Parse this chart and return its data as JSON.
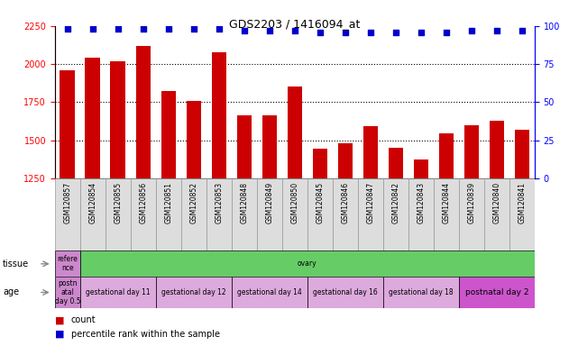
{
  "title": "GDS2203 / 1416094_at",
  "samples": [
    "GSM120857",
    "GSM120854",
    "GSM120855",
    "GSM120856",
    "GSM120851",
    "GSM120852",
    "GSM120853",
    "GSM120848",
    "GSM120849",
    "GSM120850",
    "GSM120845",
    "GSM120846",
    "GSM120847",
    "GSM120842",
    "GSM120843",
    "GSM120844",
    "GSM120839",
    "GSM120840",
    "GSM120841"
  ],
  "counts": [
    1960,
    2040,
    2020,
    2120,
    1820,
    1760,
    2075,
    1665,
    1660,
    1850,
    1445,
    1480,
    1590,
    1450,
    1375,
    1545,
    1600,
    1630,
    1570
  ],
  "percentiles": [
    98,
    98,
    98,
    98,
    98,
    98,
    98,
    97,
    97,
    97,
    96,
    96,
    96,
    96,
    96,
    96,
    97,
    97,
    97
  ],
  "ylim_left": [
    1250,
    2250
  ],
  "ylim_right": [
    0,
    100
  ],
  "yticks_left": [
    1250,
    1500,
    1750,
    2000,
    2250
  ],
  "yticks_right": [
    0,
    25,
    50,
    75,
    100
  ],
  "bar_color": "#cc0000",
  "dot_color": "#0000cc",
  "tissue_cells": [
    {
      "text": "refere\nnce",
      "color": "#cc88cc",
      "span": 1
    },
    {
      "text": "ovary",
      "color": "#66cc66",
      "span": 18
    }
  ],
  "age_cells": [
    {
      "text": "postn\natal\nday 0.5",
      "color": "#cc88cc",
      "span": 1
    },
    {
      "text": "gestational day 11",
      "color": "#ddaadd",
      "span": 3
    },
    {
      "text": "gestational day 12",
      "color": "#ddaadd",
      "span": 3
    },
    {
      "text": "gestational day 14",
      "color": "#ddaadd",
      "span": 3
    },
    {
      "text": "gestational day 16",
      "color": "#ddaadd",
      "span": 3
    },
    {
      "text": "gestational day 18",
      "color": "#ddaadd",
      "span": 3
    },
    {
      "text": "postnatal day 2",
      "color": "#cc55cc",
      "span": 3
    }
  ],
  "grid_yticks": [
    1500,
    1750,
    2000
  ],
  "background_color": "#ffffff",
  "plot_bg": "#ffffff",
  "xticklabel_bg": "#dddddd"
}
